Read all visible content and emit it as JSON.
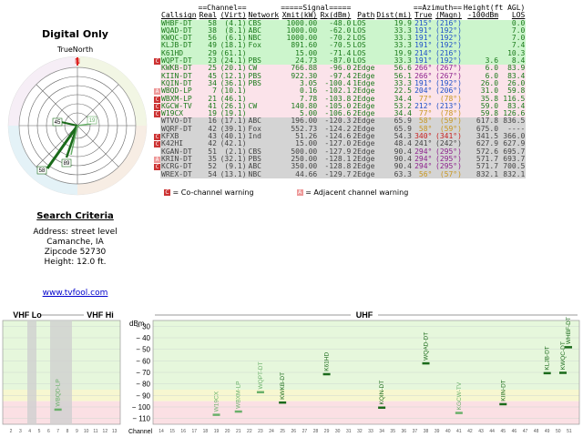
{
  "summary": {
    "title": "Digital Only",
    "true_north_label": "TrueNorth",
    "compass_n": "N",
    "radar_labels": [
      "45",
      "19",
      "58",
      "89"
    ]
  },
  "criteria": {
    "title": "Search Criteria",
    "address": "Address: street level",
    "city": "Camanche, IA",
    "zip": "Zipcode 52730",
    "height": "Height: 12.0 ft."
  },
  "link": "www.tvfool.com",
  "table": {
    "group_headers": {
      "channel": "==Channel==",
      "signal": "=====Signal=====",
      "azimuth": "==Azimuth==",
      "height": "Height(ft AGL)"
    },
    "columns": [
      "Callsign",
      "Real",
      "(Virt)",
      "Network",
      "Xmit(kW)",
      "Rx(dBm)",
      "Path",
      "Dist(mi)",
      "True",
      "(Magn)",
      "-100dBm",
      "LOS"
    ],
    "rows": [
      {
        "flag": "",
        "callsign": "WHBF-DT",
        "real": "58",
        "virt": "(4.1)",
        "network": "CBS",
        "xmit": "1000.00",
        "rx": "-48.0",
        "path": "LOS",
        "dist": "19.9",
        "true": "215°",
        "magn": "(216°)",
        "h100": "",
        "los": "0.0",
        "bg": "#ccf5cc",
        "color": "#1a7a1a",
        "az": "#1e50c8"
      },
      {
        "flag": "",
        "callsign": "WQAD-DT",
        "real": "38",
        "virt": "(8.1)",
        "network": "ABC",
        "xmit": "1000.00",
        "rx": "-62.0",
        "path": "LOS",
        "dist": "33.3",
        "true": "191°",
        "magn": "(192°)",
        "h100": "",
        "los": "7.0",
        "bg": "#ccf5cc",
        "color": "#1a7a1a",
        "az": "#1e50c8"
      },
      {
        "flag": "",
        "callsign": "KWQC-DT",
        "real": "56",
        "virt": "(6.1)",
        "network": "NBC",
        "xmit": "1000.00",
        "rx": "-70.2",
        "path": "LOS",
        "dist": "33.3",
        "true": "191°",
        "magn": "(192°)",
        "h100": "",
        "los": "7.0",
        "bg": "#ccf5cc",
        "color": "#1a7a1a",
        "az": "#1e50c8"
      },
      {
        "flag": "",
        "callsign": "KLJB-DT",
        "real": "49",
        "virt": "(18.1)",
        "network": "Fox",
        "xmit": "891.60",
        "rx": "-70.5",
        "path": "LOS",
        "dist": "33.3",
        "true": "191°",
        "magn": "(192°)",
        "h100": "",
        "los": "7.4",
        "bg": "#ccf5cc",
        "color": "#1a7a1a",
        "az": "#1e50c8"
      },
      {
        "flag": "",
        "callsign": "K61HD",
        "real": "29",
        "virt": "(61.1)",
        "network": "",
        "xmit": "15.00",
        "rx": "-71.4",
        "path": "LOS",
        "dist": "19.9",
        "true": "214°",
        "magn": "(216°)",
        "h100": "",
        "los": "10.3",
        "bg": "#ccf5cc",
        "color": "#1a7a1a",
        "az": "#1e50c8"
      },
      {
        "flag": "C",
        "callsign": "WQPT-DT",
        "real": "23",
        "virt": "(24.1)",
        "network": "PBS",
        "xmit": "24.73",
        "rx": "-87.0",
        "path": "LOS",
        "dist": "33.3",
        "true": "191°",
        "magn": "(192°)",
        "h100": "3.6",
        "los": "8.4",
        "bg": "#ccf5cc",
        "color": "#1a7a1a",
        "az": "#1e50c8"
      },
      {
        "flag": "",
        "callsign": "KWKB-DT",
        "real": "25",
        "virt": "(20.1)",
        "network": "CW",
        "xmit": "766.88",
        "rx": "-96.0",
        "path": "2Edge",
        "dist": "56.6",
        "true": "266°",
        "magn": "(267°)",
        "h100": "6.0",
        "los": "83.9",
        "bg": "#fbe3ea",
        "color": "#1a7a1a",
        "az": "#8c1e8c"
      },
      {
        "flag": "",
        "callsign": "KIIN-DT",
        "real": "45",
        "virt": "(12.1)",
        "network": "PBS",
        "xmit": "922.30",
        "rx": "-97.4",
        "path": "2Edge",
        "dist": "56.1",
        "true": "266°",
        "magn": "(267°)",
        "h100": "6.0",
        "los": "83.4",
        "bg": "#fbe3ea",
        "color": "#1a7a1a",
        "az": "#8c1e8c"
      },
      {
        "flag": "",
        "callsign": "KQIN-DT",
        "real": "34",
        "virt": "(36.1)",
        "network": "PBS",
        "xmit": "3.05",
        "rx": "-100.4",
        "path": "1Edge",
        "dist": "33.3",
        "true": "191°",
        "magn": "(192°)",
        "h100": "26.0",
        "los": "26.0",
        "bg": "#fbe3ea",
        "color": "#1a7a1a",
        "az": "#1e50c8"
      },
      {
        "flag": "A",
        "callsign": "WBQD-LP",
        "real": "7",
        "virt": "(10.1)",
        "network": "",
        "xmit": "0.16",
        "rx": "-102.1",
        "path": "2Edge",
        "dist": "22.5",
        "true": "204°",
        "magn": "(206°)",
        "h100": "31.0",
        "los": "59.8",
        "bg": "#fbe3ea",
        "color": "#1a7a1a",
        "az": "#1e50c8"
      },
      {
        "flag": "C",
        "callsign": "WBXM-LP",
        "real": "21",
        "virt": "(46.1)",
        "network": "",
        "xmit": "7.78",
        "rx": "-103.8",
        "path": "2Edge",
        "dist": "34.4",
        "true": "77°",
        "magn": "(78°)",
        "h100": "35.8",
        "los": "116.5",
        "bg": "#fbe3ea",
        "color": "#1a7a1a",
        "az": "#c8961e"
      },
      {
        "flag": "C",
        "callsign": "KGCW-TV",
        "real": "41",
        "virt": "(26.1)",
        "network": "CW",
        "xmit": "140.80",
        "rx": "-105.0",
        "path": "2Edge",
        "dist": "53.2",
        "true": "212°",
        "magn": "(213°)",
        "h100": "59.0",
        "los": "83.4",
        "bg": "#fbe3ea",
        "color": "#1a7a1a",
        "az": "#1e50c8"
      },
      {
        "flag": "C",
        "callsign": "W19CX",
        "real": "19",
        "virt": "(19.1)",
        "network": "",
        "xmit": "5.00",
        "rx": "-106.6",
        "path": "2Edge",
        "dist": "34.4",
        "true": "77°",
        "magn": "(78°)",
        "h100": "59.8",
        "los": "126.6",
        "bg": "#fbe3ea",
        "color": "#1a7a1a",
        "az": "#c8961e"
      },
      {
        "flag": "",
        "callsign": "WTVO-DT",
        "real": "16",
        "virt": "(17.1)",
        "network": "ABC",
        "xmit": "196.00",
        "rx": "-120.3",
        "path": "2Edge",
        "dist": "65.9",
        "true": "58°",
        "magn": "(59°)",
        "h100": "617.8",
        "los": "836.5",
        "bg": "#d4d4d4",
        "color": "#444",
        "az": "#c8961e"
      },
      {
        "flag": "",
        "callsign": "WQRF-DT",
        "real": "42",
        "virt": "(39.1)",
        "network": "Fox",
        "xmit": "552.73",
        "rx": "-124.2",
        "path": "2Edge",
        "dist": "65.9",
        "true": "58°",
        "magn": "(59°)",
        "h100": "675.0",
        "los": "----",
        "bg": "#d4d4d4",
        "color": "#444",
        "az": "#c8961e"
      },
      {
        "flag": "C",
        "callsign": "KFXB",
        "real": "43",
        "virt": "(40.1)",
        "network": "Ind",
        "xmit": "51.26",
        "rx": "-124.6",
        "path": "2Edge",
        "dist": "54.3",
        "true": "340°",
        "magn": "(341°)",
        "h100": "341.5",
        "los": "366.0",
        "bg": "#d4d4d4",
        "color": "#444",
        "az": "#c81e1e"
      },
      {
        "flag": "C",
        "callsign": "K42HI",
        "real": "42",
        "virt": "(42.1)",
        "network": "",
        "xmit": "15.00",
        "rx": "-127.0",
        "path": "2Edge",
        "dist": "48.4",
        "true": "241°",
        "magn": "(242°)",
        "h100": "627.9",
        "los": "627.9",
        "bg": "#d4d4d4",
        "color": "#444",
        "az": "#444"
      },
      {
        "flag": "",
        "callsign": "KGAN-DT",
        "real": "51",
        "virt": "(2.1)",
        "network": "CBS",
        "xmit": "500.00",
        "rx": "-127.9",
        "path": "2Edge",
        "dist": "90.4",
        "true": "294°",
        "magn": "(295°)",
        "h100": "572.6",
        "los": "695.7",
        "bg": "#d4d4d4",
        "color": "#444",
        "az": "#8c1e8c"
      },
      {
        "flag": "A",
        "callsign": "KRIN-DT",
        "real": "35",
        "virt": "(32.1)",
        "network": "PBS",
        "xmit": "250.00",
        "rx": "-128.1",
        "path": "2Edge",
        "dist": "90.4",
        "true": "294°",
        "magn": "(295°)",
        "h100": "571.7",
        "los": "693.7",
        "bg": "#d4d4d4",
        "color": "#444",
        "az": "#8c1e8c"
      },
      {
        "flag": "C",
        "callsign": "KCRG-DT",
        "real": "52",
        "virt": "(9.1)",
        "network": "ABC",
        "xmit": "350.00",
        "rx": "-128.8",
        "path": "2Edge",
        "dist": "90.4",
        "true": "294°",
        "magn": "(295°)",
        "h100": "571.7",
        "los": "700.5",
        "bg": "#d4d4d4",
        "color": "#444",
        "az": "#8c1e8c"
      },
      {
        "flag": "",
        "callsign": "WREX-DT",
        "real": "54",
        "virt": "(13.1)",
        "network": "NBC",
        "xmit": "44.66",
        "rx": "-129.7",
        "path": "2Edge",
        "dist": "63.3",
        "true": "56°",
        "magn": "(57°)",
        "h100": "832.1",
        "los": "832.1",
        "bg": "#d4d4d4",
        "color": "#444",
        "az": "#c8961e"
      }
    ]
  },
  "legend": {
    "cochannel_icon": "C",
    "cochannel": "= Co-channel warning",
    "adjacent_icon": "A",
    "adjacent": "= Adjacent channel warning"
  },
  "chart_data": {
    "type": "bar",
    "sections": [
      "VHF Lo",
      "VHF Hi",
      "UHF"
    ],
    "ylabel": "dBm",
    "xlabel": "Channel",
    "ylim": [
      -115,
      -25
    ],
    "yticks": [
      -30,
      -40,
      -50,
      -60,
      -70,
      -80,
      -90,
      -100,
      -110
    ],
    "vhf_lo_channels": [
      "2",
      "3",
      "4",
      "5",
      "6"
    ],
    "vhf_hi_channels": [
      "7",
      "8",
      "9",
      "10",
      "11",
      "12",
      "13"
    ],
    "uhf_channels": [
      "14",
      "15",
      "16",
      "17",
      "18",
      "19",
      "20",
      "21",
      "22",
      "23",
      "24",
      "25",
      "26",
      "27",
      "28",
      "29",
      "30",
      "31",
      "32",
      "33",
      "34",
      "35",
      "36",
      "37",
      "38",
      "39",
      "40",
      "41",
      "42",
      "43",
      "44",
      "45",
      "46",
      "47",
      "48",
      "49",
      "50",
      "51"
    ],
    "stations": [
      {
        "label": "WBQD-LP",
        "channel": 7,
        "value": -102.1,
        "color": "#6ab06a"
      },
      {
        "label": "W19CX",
        "channel": 19,
        "value": -106.6,
        "color": "#6ab06a"
      },
      {
        "label": "WBXM-LP",
        "channel": 21,
        "value": -103.8,
        "color": "#6ab06a"
      },
      {
        "label": "WQPT-DT",
        "channel": 23,
        "value": -87.0,
        "color": "#6ab06a"
      },
      {
        "label": "KWKB-DT",
        "channel": 25,
        "value": -96.0,
        "color": "#1a6a1a"
      },
      {
        "label": "K61HD",
        "channel": 29,
        "value": -71.4,
        "color": "#1a6a1a"
      },
      {
        "label": "KQIN-DT",
        "channel": 34,
        "value": -100.4,
        "color": "#1a6a1a"
      },
      {
        "label": "WQAD-DT",
        "channel": 38,
        "value": -62.0,
        "color": "#1a6a1a"
      },
      {
        "label": "KGCW-TV",
        "channel": 41,
        "value": -105.0,
        "color": "#6ab06a"
      },
      {
        "label": "KIIN-DT",
        "channel": 45,
        "value": -97.4,
        "color": "#1a6a1a"
      },
      {
        "label": "KLJB-DT",
        "channel": 49,
        "value": -70.5,
        "color": "#1a6a1a"
      },
      {
        "label": "KWQC-DT",
        "channel": 56,
        "value": -70.2,
        "color": "#1a6a1a"
      },
      {
        "label": "WHBF-DT",
        "channel": 58,
        "value": -48.0,
        "color": "#1a6a1a"
      }
    ],
    "band_colors": {
      "green": "#e6f7dc",
      "yellow": "#f7f7d0",
      "pink": "#fbe0e4",
      "grey": "#e8e8e8"
    }
  }
}
